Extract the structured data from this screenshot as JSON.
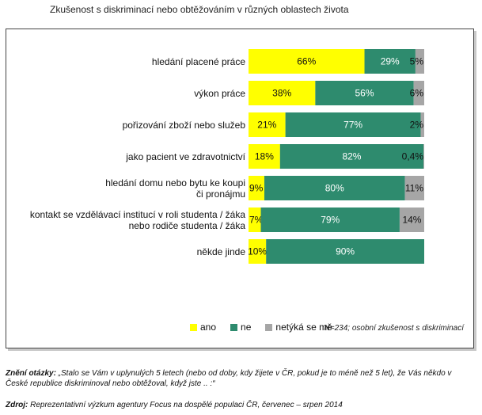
{
  "page_title": "Zkušenost s diskriminací nebo obtěžováním v různých oblastech života",
  "chart_data": {
    "type": "bar",
    "orientation": "horizontal",
    "stacked": true,
    "normalized_100": true,
    "categories": [
      [
        "hledání placené práce"
      ],
      [
        "výkon práce"
      ],
      [
        "pořizování zboží nebo služeb"
      ],
      [
        "jako pacient ve zdravotnictví"
      ],
      [
        "hledání domu nebo bytu ke koupi",
        "či pronájmu"
      ],
      [
        "kontakt se vzdělávací institucí v roli studenta / žáka",
        "nebo rodiče studenta / žáka"
      ],
      [
        "někde jinde"
      ]
    ],
    "series": [
      {
        "name": "ano",
        "color": "#ffff00",
        "values": [
          66,
          38,
          21,
          18,
          9,
          7,
          10
        ],
        "labels": [
          "66%",
          "38%",
          "21%",
          "18%",
          "9%",
          "7%",
          "10%"
        ]
      },
      {
        "name": "ne",
        "color": "#2e8b6e",
        "values": [
          29,
          56,
          77,
          82,
          80,
          79,
          90
        ],
        "labels": [
          "29%",
          "56%",
          "77%",
          "82%",
          "80%",
          "79%",
          "90%"
        ]
      },
      {
        "name": "netýká se mě",
        "color": "#a6a6a6",
        "values": [
          5,
          6,
          2,
          0.4,
          11,
          14,
          0
        ],
        "labels": [
          "5%",
          "6%",
          "2%",
          "0,4%",
          "11%",
          "14%",
          ""
        ]
      }
    ],
    "legend": "bottom",
    "grid": false,
    "note": "N=234; osobní zkušenost s diskriminací"
  },
  "footer": {
    "question_label": "Znění otázky:",
    "question_text": " „Stalo se Vám v uplynulých 5 letech (nebo od doby, kdy žijete v ČR, pokud je to méně než 5 let), že Vás někdo v České republice diskriminoval nebo obtěžoval, když jste .. :“",
    "source_label": "Zdroj:",
    "source_text": " Reprezentativní výzkum agentury Focus na dospělé populaci ČR, červenec – srpen 2014"
  }
}
